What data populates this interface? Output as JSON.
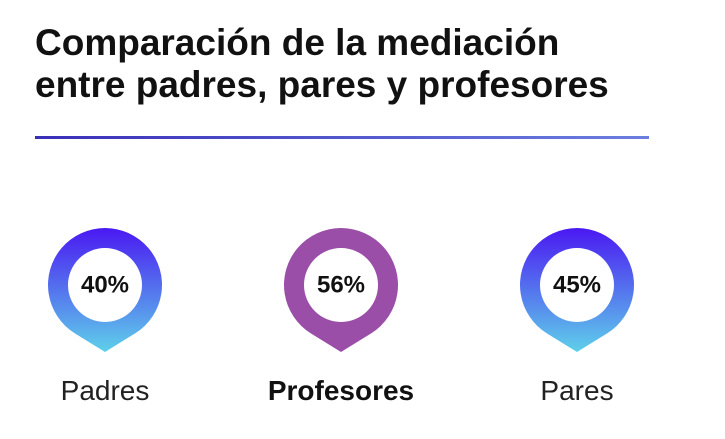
{
  "header": {
    "title_lines": [
      "Comparación de la mediación",
      "entre padres, pares y profesores"
    ]
  },
  "items": [
    {
      "value": "40%",
      "label": "Padres"
    },
    {
      "value": "56%",
      "label": "Profesores"
    },
    {
      "value": "45%",
      "label": "Pares"
    }
  ]
}
